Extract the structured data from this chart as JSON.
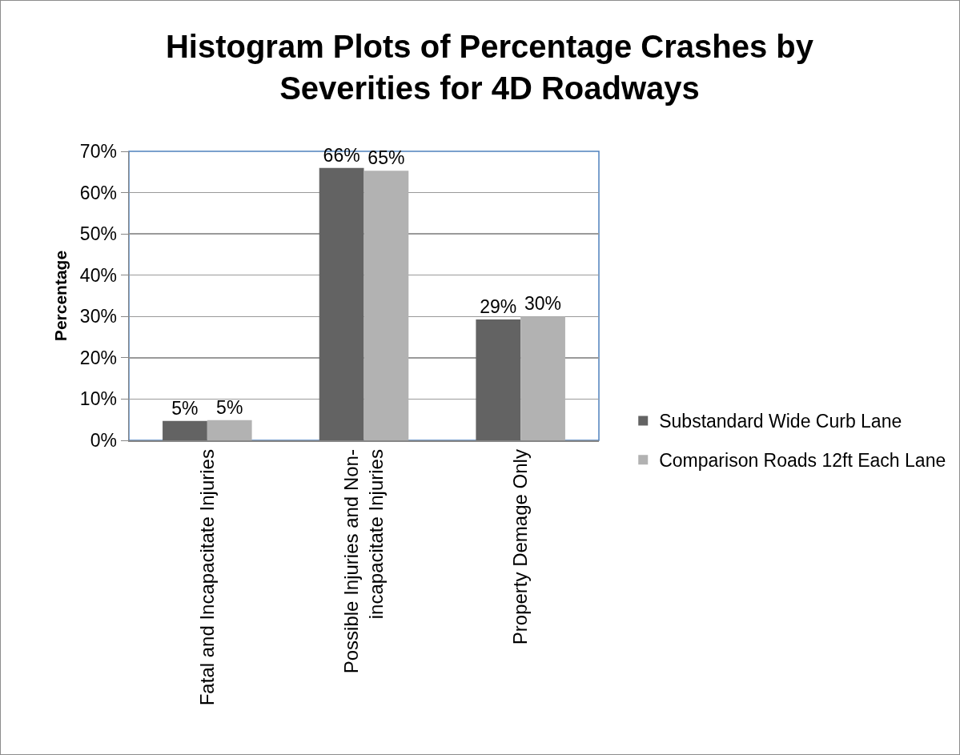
{
  "chart_data": {
    "type": "bar",
    "title": "Histogram Plots of Percentage Crashes by Severities for 4D Roadways",
    "ylabel": "Percentage",
    "categories": [
      "Fatal and Incapacitate Injuries",
      "Possible Injuries and Non-incapacitate Injuries",
      "Property Demage Only"
    ],
    "series": [
      {
        "name": "Substandard Wide Curb Lane",
        "color": "#636363",
        "values": [
          4.7,
          66.0,
          29.3
        ],
        "value_labels": [
          "5%",
          "66%",
          "29%"
        ]
      },
      {
        "name": "Comparison Roads 12ft Each Lane",
        "color": "#b2b2b2",
        "values": [
          4.9,
          65.3,
          30.0
        ],
        "value_labels": [
          "5%",
          "65%",
          "30%"
        ]
      }
    ],
    "ylim": [
      0,
      70
    ],
    "yticks": [
      {
        "value": 0,
        "label": "0%"
      },
      {
        "value": 10,
        "label": "10%"
      },
      {
        "value": 20,
        "label": "20%"
      },
      {
        "value": 30,
        "label": "30%"
      },
      {
        "value": 40,
        "label": "40%"
      },
      {
        "value": 50,
        "label": "50%"
      },
      {
        "value": 60,
        "label": "60%"
      },
      {
        "value": 70,
        "label": "70%"
      }
    ],
    "grid": "y",
    "legend": "right"
  }
}
